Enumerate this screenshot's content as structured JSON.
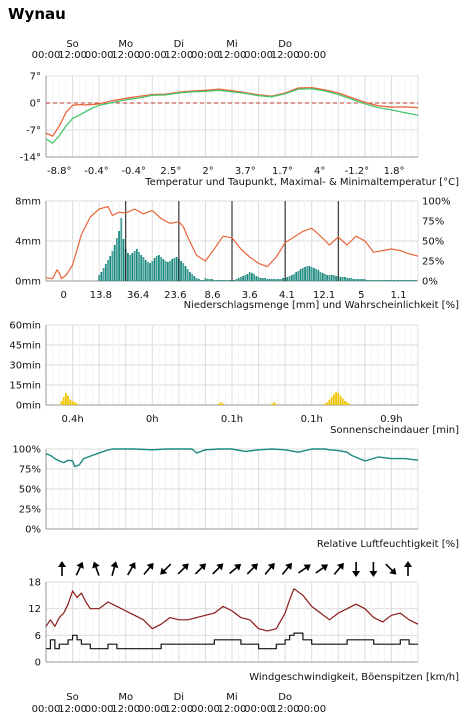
{
  "title": "Wynau",
  "time_axis": {
    "days": [
      "So",
      "Mo",
      "Di",
      "Mi",
      "Do"
    ],
    "ticks": [
      "00:00",
      "12:00",
      "00:00",
      "12:00",
      "00:00",
      "12:00",
      "00:00",
      "12:00",
      "00:00",
      "12:00",
      "00:00"
    ]
  },
  "colors": {
    "temp": "#e8653b",
    "dew": "#47c76c",
    "zero": "#c0392b",
    "cold": "#2f7bd0",
    "precip": "#19897f",
    "precip_prob": "#e8653b",
    "sun": "#f0c400",
    "humidity": "#19897f",
    "wind": "#8b1a1a",
    "gust_line": "#111111",
    "zero_line": "#c0392b"
  },
  "chart_data": [
    {
      "type": "line",
      "title": "Temperatur und Taupunkt, Maximal- & Minimaltemperatur [°C]",
      "y_ticks": [
        "7°",
        "0°",
        "-7°",
        "-14°"
      ],
      "ylim": [
        -14,
        7
      ],
      "day_labels": [
        {
          "text": "-8.8°",
          "kind": "min"
        },
        {
          "text": "-0.4°",
          "kind": "max"
        },
        {
          "text": "-0.4°",
          "kind": "min"
        },
        {
          "text": "2.5°",
          "kind": "max"
        },
        {
          "text": "2°",
          "kind": "min"
        },
        {
          "text": "3.7°",
          "kind": "max"
        },
        {
          "text": "1.7°",
          "kind": "min"
        },
        {
          "text": "4°",
          "kind": "max"
        },
        {
          "text": "-1.2°",
          "kind": "min"
        },
        {
          "text": "1.8°",
          "kind": "max"
        }
      ],
      "series": [
        {
          "name": "Temperatur",
          "x": [
            0,
            3,
            6,
            9,
            12,
            15,
            18,
            21,
            24,
            30,
            36,
            42,
            48,
            54,
            60,
            66,
            72,
            78,
            84,
            90,
            96,
            102,
            108,
            114,
            120,
            126,
            132,
            138,
            144,
            150,
            156,
            162,
            168
          ],
          "values": [
            -7.8,
            -8.6,
            -6,
            -2.5,
            -0.6,
            -0.4,
            -0.5,
            -0.4,
            -0.2,
            0.6,
            1.2,
            1.7,
            2.2,
            2.3,
            2.8,
            3.1,
            3.3,
            3.6,
            3.2,
            2.7,
            2.1,
            1.8,
            2.6,
            3.9,
            4.0,
            3.4,
            2.6,
            1.4,
            0.2,
            -0.7,
            -1.1,
            -1.0,
            -1.2
          ]
        },
        {
          "name": "Taupunkt",
          "x": [
            0,
            3,
            6,
            9,
            12,
            15,
            18,
            21,
            24,
            30,
            36,
            42,
            48,
            54,
            60,
            66,
            72,
            78,
            84,
            90,
            96,
            102,
            108,
            114,
            120,
            126,
            132,
            138,
            144,
            150,
            156,
            162,
            168
          ],
          "values": [
            -9.3,
            -10.4,
            -8.5,
            -6,
            -4,
            -3.2,
            -2.2,
            -1.3,
            -0.6,
            0.1,
            0.8,
            1.3,
            2.0,
            2.1,
            2.6,
            2.9,
            3.0,
            3.3,
            2.9,
            2.5,
            1.9,
            1.6,
            2.4,
            3.6,
            3.7,
            3.1,
            2.2,
            1.0,
            -0.2,
            -1.2,
            -1.8,
            -2.5,
            -3.2
          ]
        }
      ]
    },
    {
      "type": "bar",
      "title": "Niederschlagsmenge [mm] und Wahrscheinlichkeit [%]",
      "y_ticks": [
        "8mm",
        "4mm",
        "0mm"
      ],
      "y2_ticks": [
        "100%",
        "75%",
        "50%",
        "25%",
        "0%"
      ],
      "ylim": [
        0,
        8
      ],
      "daily_sums": [
        "0",
        "13.8",
        "36.4",
        "23.6",
        "8.6",
        "3.6",
        "4.1",
        "12.1",
        "5",
        "1.1"
      ],
      "precip_x": [
        24,
        25,
        26,
        27,
        28,
        29,
        30,
        31,
        32,
        33,
        34,
        35,
        36,
        37,
        38,
        39,
        40,
        41,
        42,
        43,
        44,
        45,
        46,
        47,
        48,
        49,
        50,
        51,
        52,
        53,
        54,
        55,
        56,
        57,
        58,
        59,
        60,
        61,
        62,
        63,
        64,
        65,
        66,
        67,
        68,
        69,
        70,
        71,
        72,
        73,
        74,
        75,
        76,
        77,
        78,
        79,
        80,
        81,
        82,
        83,
        84,
        85,
        86,
        87,
        88,
        89,
        90,
        91,
        92,
        93,
        94,
        95,
        96,
        97,
        98,
        99,
        100,
        101,
        102,
        103,
        104,
        105,
        106,
        107,
        108,
        109,
        110,
        111,
        112,
        113,
        114,
        115,
        116,
        117,
        118,
        119,
        120,
        121,
        122,
        123,
        124,
        125,
        126,
        127,
        128,
        129,
        130,
        131,
        132,
        133,
        134,
        135,
        136,
        137,
        138,
        139,
        140,
        141,
        142,
        143,
        144,
        145,
        146,
        147,
        148,
        149,
        150,
        151,
        152,
        153,
        154,
        155,
        156,
        157,
        158,
        159,
        160,
        161,
        162,
        163,
        164,
        165,
        166,
        167
      ],
      "precip_values": [
        0.6,
        0.9,
        1.3,
        1.7,
        2.1,
        2.5,
        3.0,
        3.6,
        4.3,
        5.0,
        6.3,
        4.2,
        3.2,
        2.8,
        2.6,
        2.8,
        3.0,
        3.2,
        2.9,
        2.6,
        2.4,
        2.1,
        1.9,
        1.8,
        2.0,
        2.3,
        2.5,
        2.6,
        2.4,
        2.2,
        2.0,
        1.9,
        2.0,
        2.2,
        2.3,
        2.4,
        2.2,
        2.0,
        1.8,
        1.5,
        1.2,
        0.9,
        0.7,
        0.5,
        0.3,
        0.2,
        0.1,
        0.1,
        0.3,
        0.2,
        0.2,
        0.2,
        0.1,
        0.1,
        0.1,
        0.1,
        0.1,
        0.1,
        0.1,
        0.1,
        0.1,
        0.1,
        0.2,
        0.3,
        0.4,
        0.5,
        0.6,
        0.7,
        0.9,
        0.8,
        0.7,
        0.5,
        0.4,
        0.3,
        0.3,
        0.3,
        0.2,
        0.2,
        0.2,
        0.2,
        0.2,
        0.2,
        0.2,
        0.3,
        0.3,
        0.4,
        0.5,
        0.6,
        0.7,
        0.9,
        1.0,
        1.2,
        1.3,
        1.4,
        1.5,
        1.5,
        1.4,
        1.3,
        1.2,
        1.1,
        0.9,
        0.8,
        0.7,
        0.6,
        0.6,
        0.6,
        0.6,
        0.5,
        0.5,
        0.4,
        0.4,
        0.4,
        0.3,
        0.3,
        0.3,
        0.2,
        0.2,
        0.2,
        0.2,
        0.2,
        0.2,
        0.1,
        0.1,
        0.1,
        0.1,
        0.1,
        0.1,
        0.1,
        0.1,
        0.1,
        0.1,
        0.1,
        0.1,
        0.1,
        0.1,
        0.1,
        0.1,
        0.1,
        0.1,
        0.1,
        0.1,
        0.1,
        0.1,
        0.1
      ],
      "prob_x": [
        0,
        3,
        5,
        6,
        7,
        9,
        12,
        16,
        20,
        24,
        28,
        30,
        33,
        36,
        40,
        44,
        48,
        52,
        56,
        60,
        62,
        64,
        68,
        72,
        76,
        80,
        84,
        88,
        92,
        96,
        100,
        104,
        108,
        112,
        116,
        120,
        124,
        128,
        132,
        136,
        140,
        144,
        148,
        152,
        156,
        160,
        164,
        168
      ],
      "prob_values": [
        4,
        3,
        14,
        10,
        3,
        7,
        20,
        58,
        80,
        90,
        93,
        82,
        86,
        85,
        90,
        84,
        88,
        78,
        72,
        74,
        68,
        55,
        32,
        25,
        40,
        56,
        54,
        40,
        30,
        22,
        18,
        30,
        48,
        55,
        62,
        66,
        56,
        45,
        55,
        45,
        56,
        50,
        36,
        38,
        40,
        38,
        34,
        31
      ],
      "vlines_x": [
        36,
        60,
        84,
        108,
        132
      ]
    },
    {
      "type": "bar",
      "title": "Sonnenscheindauer [min]",
      "y_ticks": [
        "60min",
        "45min",
        "30min",
        "15min",
        "0min"
      ],
      "ylim": [
        0,
        60
      ],
      "daily_sums": [
        "0.4h",
        "0h",
        "0.1h",
        "0.1h",
        "0.9h"
      ],
      "x": [
        7,
        8,
        9,
        10,
        11,
        12,
        13,
        14,
        78,
        79,
        80,
        102,
        103,
        104,
        126,
        127,
        128,
        129,
        130,
        131,
        132,
        133,
        134,
        135,
        136,
        137
      ],
      "values": [
        3,
        6,
        9,
        7,
        4,
        3,
        2,
        1,
        1,
        2,
        1,
        1,
        2,
        1,
        1,
        2,
        4,
        6,
        8,
        10,
        9,
        7,
        5,
        3,
        2,
        1
      ]
    },
    {
      "type": "line",
      "title": "Relative Luftfeuchtigkeit [%]",
      "y_ticks": [
        "100%",
        "75%",
        "50%",
        "25%",
        "0%"
      ],
      "ylim": [
        0,
        100
      ],
      "x": [
        0,
        2,
        4,
        6,
        8,
        10,
        12,
        13,
        15,
        17,
        19,
        21,
        23,
        25,
        27,
        30,
        36,
        40,
        48,
        54,
        60,
        66,
        68,
        72,
        78,
        84,
        90,
        96,
        102,
        108,
        114,
        120,
        126,
        128,
        132,
        136,
        138,
        144,
        150,
        156,
        162,
        168
      ],
      "values": [
        94,
        92,
        88,
        85,
        83,
        86,
        85,
        78,
        80,
        88,
        90,
        92,
        94,
        96,
        98,
        100,
        100,
        100,
        99,
        100,
        100,
        100,
        95,
        99,
        100,
        100,
        97,
        99,
        100,
        99,
        96,
        100,
        100,
        99,
        98,
        96,
        92,
        85,
        90,
        88,
        88,
        86
      ]
    },
    {
      "type": "line",
      "title": "Windgeschwindigkeit, Böenspitzen [km/h]",
      "y_ticks": [
        "18",
        "12",
        "6",
        "0"
      ],
      "ylim": [
        0,
        18
      ],
      "directions_deg": [
        0,
        25,
        340,
        15,
        30,
        40,
        225,
        45,
        45,
        45,
        50,
        45,
        40,
        40,
        55,
        55,
        40,
        180,
        180,
        135,
        0
      ],
      "series": [
        {
          "name": "Böenspitzen",
          "x": [
            0,
            2,
            4,
            6,
            8,
            10,
            12,
            14,
            16,
            18,
            20,
            24,
            28,
            32,
            36,
            40,
            44,
            48,
            52,
            56,
            60,
            64,
            68,
            72,
            76,
            80,
            84,
            88,
            92,
            96,
            100,
            104,
            108,
            110,
            112,
            116,
            120,
            124,
            128,
            132,
            136,
            140,
            144,
            148,
            152,
            156,
            160,
            164,
            168
          ],
          "values": [
            8,
            9.5,
            8,
            10,
            11,
            13,
            16,
            14.5,
            15.5,
            13.5,
            12,
            12,
            13.5,
            12.5,
            11.5,
            10.5,
            9.5,
            7.5,
            8.5,
            10,
            9.5,
            9.5,
            10,
            10.5,
            11,
            12.5,
            11.5,
            10,
            9.5,
            7.5,
            7,
            7.5,
            11,
            14,
            16.5,
            15,
            12.5,
            11,
            9.5,
            11,
            12,
            13,
            12,
            10,
            9,
            10.5,
            11,
            9.5,
            8.5
          ]
        },
        {
          "name": "Windgeschwindigkeit",
          "x": [
            0,
            2,
            4,
            6,
            8,
            10,
            12,
            14,
            16,
            18,
            20,
            24,
            28,
            32,
            36,
            40,
            44,
            48,
            52,
            56,
            60,
            64,
            68,
            72,
            76,
            80,
            84,
            88,
            92,
            96,
            100,
            104,
            108,
            110,
            112,
            116,
            120,
            124,
            128,
            132,
            136,
            140,
            144,
            148,
            152,
            156,
            160,
            164,
            168
          ],
          "values": [
            3,
            5,
            3,
            4,
            4,
            5,
            6,
            5,
            4,
            4,
            3,
            3,
            4,
            3,
            3,
            3,
            3,
            3,
            4,
            4,
            4,
            4,
            4,
            4,
            5,
            5,
            5,
            4,
            4,
            3,
            3,
            4,
            5,
            6,
            6.5,
            5,
            4,
            4,
            4,
            4,
            5,
            5,
            5,
            4,
            4,
            4,
            5,
            4,
            4
          ]
        }
      ]
    }
  ]
}
